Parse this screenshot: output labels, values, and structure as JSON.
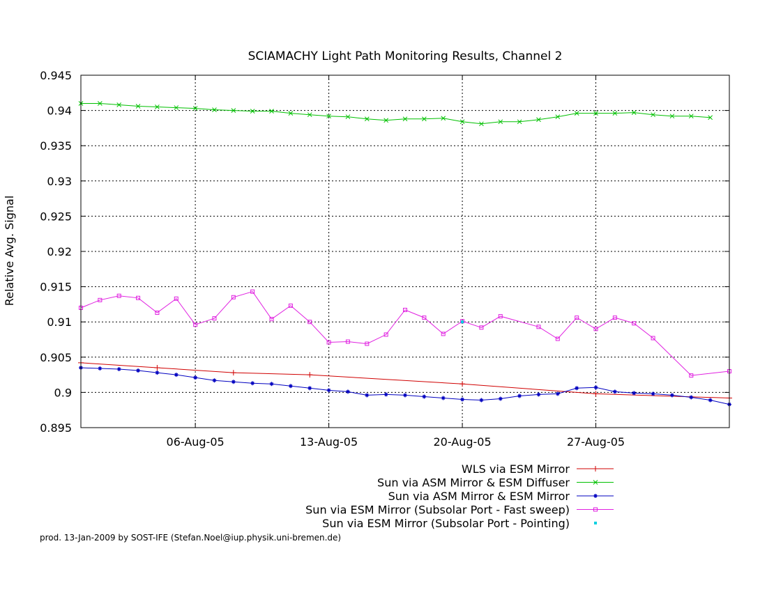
{
  "chart_data": {
    "type": "line",
    "title": "SCIAMACHY Light Path Monitoring Results, Channel 2",
    "xlabel": "",
    "ylabel": "Relative Avg. Signal",
    "x_unit": "date (2005)",
    "xlim": [
      "2005-07-31",
      "2005-09-03"
    ],
    "ylim": [
      0.895,
      0.945
    ],
    "x_tick_labels": [
      "06-Aug-05",
      "13-Aug-05",
      "20-Aug-05",
      "27-Aug-05"
    ],
    "x_tick_values": [
      "2005-08-06",
      "2005-08-13",
      "2005-08-20",
      "2005-08-27"
    ],
    "y_ticks": [
      0.895,
      0.9,
      0.905,
      0.91,
      0.915,
      0.92,
      0.925,
      0.93,
      0.935,
      0.94,
      0.945
    ],
    "y_tick_labels": [
      "0.895",
      "0.9",
      "0.905",
      "0.91",
      "0.915",
      "0.92",
      "0.925",
      "0.93",
      "0.935",
      "0.94",
      "0.945"
    ],
    "grid": true,
    "legend_position": "below plot, right-aligned",
    "series": [
      {
        "name": "WLS via ESM Mirror",
        "color": "#d00000",
        "marker": "plus",
        "points": [
          [
            "2005-07-31",
            0.9042
          ],
          [
            "2005-08-04",
            0.9035
          ],
          [
            "2005-08-08",
            0.9028
          ],
          [
            "2005-08-12",
            0.9025
          ],
          [
            "2005-08-20",
            0.9012
          ],
          [
            "2005-08-27",
            0.8998
          ],
          [
            "2005-09-03",
            0.8992
          ]
        ]
      },
      {
        "name": "Sun via ASM Mirror & ESM Diffuser",
        "color": "#00c000",
        "marker": "cross",
        "points": [
          [
            "2005-07-31",
            0.941
          ],
          [
            "2005-08-01",
            0.941
          ],
          [
            "2005-08-02",
            0.9408
          ],
          [
            "2005-08-03",
            0.9406
          ],
          [
            "2005-08-04",
            0.9405
          ],
          [
            "2005-08-05",
            0.9404
          ],
          [
            "2005-08-06",
            0.9403
          ],
          [
            "2005-08-07",
            0.9401
          ],
          [
            "2005-08-08",
            0.94
          ],
          [
            "2005-08-09",
            0.9399
          ],
          [
            "2005-08-10",
            0.9399
          ],
          [
            "2005-08-11",
            0.9396
          ],
          [
            "2005-08-12",
            0.9394
          ],
          [
            "2005-08-13",
            0.9392
          ],
          [
            "2005-08-14",
            0.9391
          ],
          [
            "2005-08-15",
            0.9388
          ],
          [
            "2005-08-16",
            0.9386
          ],
          [
            "2005-08-17",
            0.9388
          ],
          [
            "2005-08-18",
            0.9388
          ],
          [
            "2005-08-19",
            0.9389
          ],
          [
            "2005-08-20",
            0.9384
          ],
          [
            "2005-08-21",
            0.9381
          ],
          [
            "2005-08-22",
            0.9384
          ],
          [
            "2005-08-23",
            0.9384
          ],
          [
            "2005-08-24",
            0.9387
          ],
          [
            "2005-08-25",
            0.9391
          ],
          [
            "2005-08-26",
            0.9396
          ],
          [
            "2005-08-27",
            0.9396
          ],
          [
            "2005-08-28",
            0.9396
          ],
          [
            "2005-08-29",
            0.9397
          ],
          [
            "2005-08-30",
            0.9394
          ],
          [
            "2005-08-31",
            0.9392
          ],
          [
            "2005-09-01",
            0.9392
          ],
          [
            "2005-09-02",
            0.939
          ]
        ]
      },
      {
        "name": "Sun via ASM Mirror & ESM Mirror",
        "color": "#0000c0",
        "marker": "star",
        "points": [
          [
            "2005-07-31",
            0.9035
          ],
          [
            "2005-08-01",
            0.9034
          ],
          [
            "2005-08-02",
            0.9033
          ],
          [
            "2005-08-03",
            0.9031
          ],
          [
            "2005-08-04",
            0.9028
          ],
          [
            "2005-08-05",
            0.9025
          ],
          [
            "2005-08-06",
            0.9021
          ],
          [
            "2005-08-07",
            0.9017
          ],
          [
            "2005-08-08",
            0.9015
          ],
          [
            "2005-08-09",
            0.9013
          ],
          [
            "2005-08-10",
            0.9012
          ],
          [
            "2005-08-11",
            0.9009
          ],
          [
            "2005-08-12",
            0.9006
          ],
          [
            "2005-08-13",
            0.9003
          ],
          [
            "2005-08-14",
            0.9001
          ],
          [
            "2005-08-15",
            0.8996
          ],
          [
            "2005-08-16",
            0.8997
          ],
          [
            "2005-08-17",
            0.8996
          ],
          [
            "2005-08-18",
            0.8994
          ],
          [
            "2005-08-19",
            0.8992
          ],
          [
            "2005-08-20",
            0.899
          ],
          [
            "2005-08-21",
            0.8989
          ],
          [
            "2005-08-22",
            0.8991
          ],
          [
            "2005-08-23",
            0.8995
          ],
          [
            "2005-08-24",
            0.8997
          ],
          [
            "2005-08-25",
            0.8998
          ],
          [
            "2005-08-26",
            0.9006
          ],
          [
            "2005-08-27",
            0.9007
          ],
          [
            "2005-08-28",
            0.9001
          ],
          [
            "2005-08-29",
            0.8999
          ],
          [
            "2005-08-30",
            0.8998
          ],
          [
            "2005-08-31",
            0.8996
          ],
          [
            "2005-09-01",
            0.8993
          ],
          [
            "2005-09-02",
            0.8989
          ],
          [
            "2005-09-03",
            0.8983
          ]
        ]
      },
      {
        "name": "Sun via ESM Mirror (Subsolar Port - Fast sweep)",
        "color": "#e020e0",
        "marker": "square",
        "points": [
          [
            "2005-07-31",
            0.912
          ],
          [
            "2005-08-01",
            0.9131
          ],
          [
            "2005-08-02",
            0.9137
          ],
          [
            "2005-08-03",
            0.9134
          ],
          [
            "2005-08-04",
            0.9113
          ],
          [
            "2005-08-05",
            0.9133
          ],
          [
            "2005-08-06",
            0.9096
          ],
          [
            "2005-08-07",
            0.9105
          ],
          [
            "2005-08-08",
            0.9135
          ],
          [
            "2005-08-09",
            0.9143
          ],
          [
            "2005-08-10",
            0.9104
          ],
          [
            "2005-08-11",
            0.9123
          ],
          [
            "2005-08-12",
            0.91
          ],
          [
            "2005-08-13",
            0.9071
          ],
          [
            "2005-08-14",
            0.9072
          ],
          [
            "2005-08-15",
            0.9069
          ],
          [
            "2005-08-16",
            0.9082
          ],
          [
            "2005-08-17",
            0.9117
          ],
          [
            "2005-08-18",
            0.9106
          ],
          [
            "2005-08-19",
            0.9083
          ],
          [
            "2005-08-20",
            0.9101
          ],
          [
            "2005-08-21",
            0.9092
          ],
          [
            "2005-08-22",
            0.9108
          ],
          [
            "2005-08-24",
            0.9093
          ],
          [
            "2005-08-25",
            0.9076
          ],
          [
            "2005-08-26",
            0.9106
          ],
          [
            "2005-08-27",
            0.909
          ],
          [
            "2005-08-28",
            0.9106
          ],
          [
            "2005-08-29",
            0.9098
          ],
          [
            "2005-08-30",
            0.9077
          ],
          [
            "2005-09-01",
            0.9024
          ],
          [
            "2005-09-03",
            0.903
          ]
        ]
      },
      {
        "name": "Sun via ESM Mirror (Subsolar Port - Pointing)",
        "color": "#00d0e0",
        "marker": "dot",
        "points": [
          [
            "2005-08-20",
            0.91
          ]
        ]
      }
    ]
  },
  "footer": {
    "credit": "prod. 13-Jan-2009 by SOST-IFE (Stefan.Noel@iup.physik.uni-bremen.de)"
  }
}
